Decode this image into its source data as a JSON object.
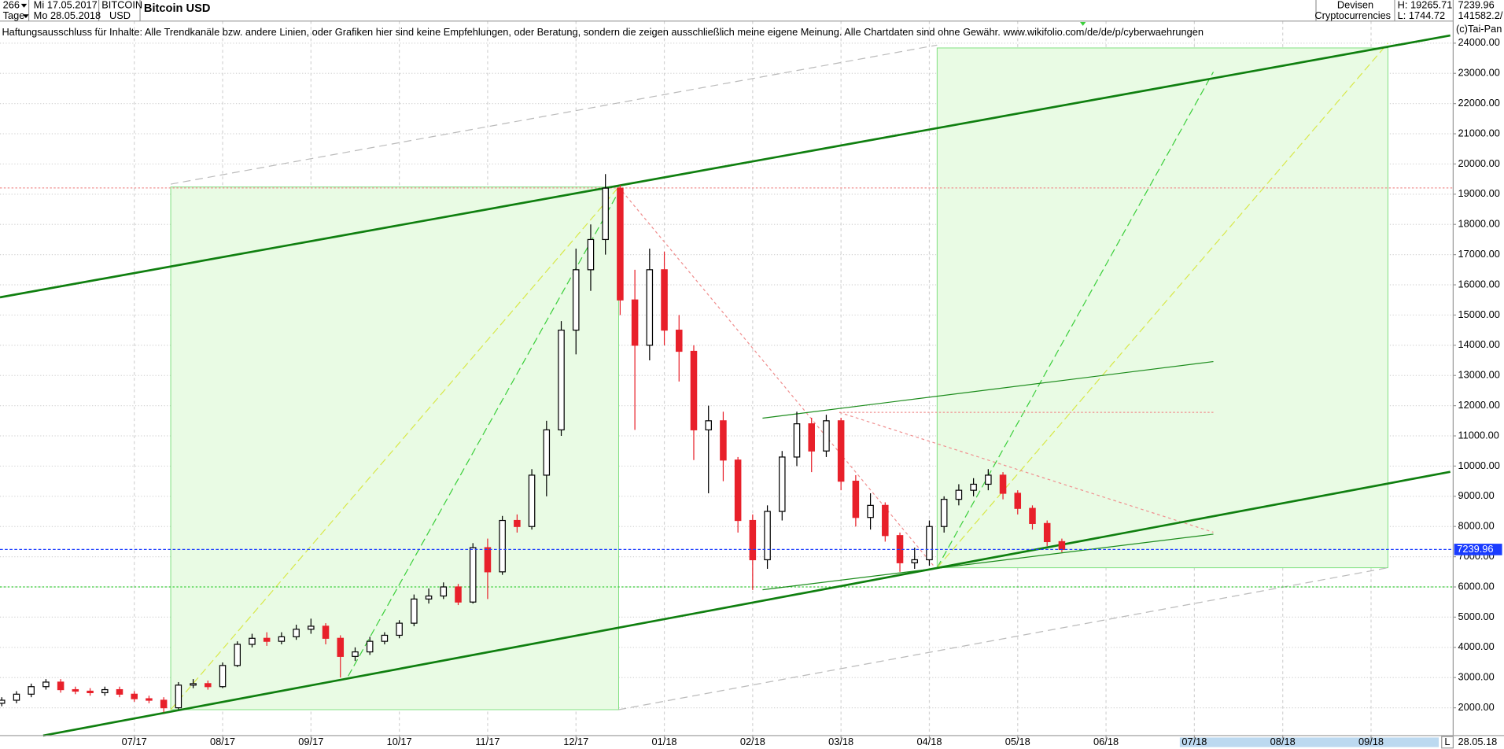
{
  "header": {
    "count": "266",
    "period": "Tage",
    "from": "Mi 17.05.2017",
    "to": "Mo 28.05.2018",
    "symbol": "BITCOIN",
    "currency": "USD",
    "title": "Bitcoin USD",
    "market": "Devisen",
    "group": "Cryptocurrencies",
    "high": "H: 19265.71",
    "low": "L: 1744.72",
    "last": "7239.96",
    "volume": "141582.2/",
    "credit": "(c)Tai-Pan"
  },
  "disclaimer": "Haftungsausschluss für Inhalte: Alle Trendkanäle bzw. andere Linien, oder Grafiken hier sind keine Empfehlungen, oder Beratung, sondern die zeigen ausschließlich meine eigene Meinung. Alle Chartdaten sind ohne Gewähr.  www.wikifolio.com/de/de/p/cyberwaehrungen",
  "footer": {
    "current_date": "28.05.18",
    "scroll": "L"
  },
  "chart_data": {
    "type": "candlestick",
    "title": "Bitcoin USD",
    "categories": [
      null,
      null,
      null,
      null,
      null,
      null,
      null,
      null,
      null,
      "07/17",
      null,
      null,
      null,
      null,
      null,
      "08/17",
      null,
      null,
      null,
      null,
      null,
      "09/17",
      null,
      null,
      null,
      null,
      null,
      "10/17",
      null,
      null,
      null,
      null,
      null,
      "11/17",
      null,
      null,
      null,
      null,
      null,
      "12/17",
      null,
      null,
      null,
      null,
      null,
      "01/18",
      null,
      null,
      null,
      null,
      null,
      "02/18",
      null,
      null,
      null,
      null,
      null,
      "03/18",
      null,
      null,
      null,
      null,
      null,
      "04/18",
      null,
      null,
      null,
      null,
      null,
      "05/18",
      null,
      null,
      null,
      null,
      null,
      "06/18",
      null,
      null,
      null,
      null,
      null,
      "07/18",
      null,
      null,
      null,
      null,
      null,
      "08/18",
      null,
      null,
      null,
      null,
      null,
      "09/18",
      null,
      null,
      null,
      null
    ],
    "open": [
      2150,
      2250,
      2450,
      2700,
      2850,
      2600,
      2550,
      2500,
      2600,
      2450,
      2300,
      2250,
      2000,
      2750,
      2800,
      2700,
      3400,
      4100,
      4300,
      4200,
      4350,
      4600,
      4700,
      4300,
      3700,
      3850,
      4200,
      4400,
      4800,
      5600,
      5700,
      6000,
      5500,
      7300,
      6500,
      8200,
      8000,
      9700,
      11200,
      14500,
      16500,
      17500,
      19200,
      15500,
      14000,
      16500,
      14500,
      13800,
      11200,
      11500,
      10200,
      8200,
      6900,
      8500,
      10300,
      11400,
      10500,
      11500,
      9500,
      8300,
      8700,
      7700,
      6800,
      6900,
      8000,
      8900,
      9200,
      9400,
      9700,
      9100,
      8600,
      8100,
      7500,
      null,
      null,
      null,
      null,
      null,
      null,
      null,
      null,
      null,
      null,
      null,
      null,
      null,
      null,
      null,
      null,
      null,
      null,
      null,
      null,
      null,
      null,
      null,
      null,
      null
    ],
    "high": [
      2350,
      2550,
      2800,
      2950,
      2950,
      2700,
      2650,
      2700,
      2700,
      2550,
      2400,
      2350,
      2850,
      2950,
      2900,
      3500,
      4200,
      4450,
      4500,
      4500,
      4750,
      4950,
      4800,
      4400,
      4000,
      4350,
      4500,
      4900,
      5750,
      5950,
      6150,
      6100,
      7450,
      7600,
      8350,
      8400,
      9900,
      11500,
      14800,
      17200,
      18000,
      19666,
      19300,
      16500,
      17200,
      17100,
      15000,
      14000,
      12000,
      11800,
      10300,
      8400,
      8700,
      10500,
      11800,
      11600,
      11700,
      11600,
      9700,
      9100,
      8800,
      7800,
      7300,
      8200,
      9000,
      9400,
      9600,
      9900,
      9800,
      9200,
      8700,
      8200,
      7600,
      null,
      null,
      null,
      null,
      null,
      null,
      null,
      null,
      null,
      null,
      null,
      null,
      null,
      null,
      null,
      null,
      null,
      null,
      null,
      null,
      null,
      null,
      null,
      null,
      null
    ],
    "low": [
      2050,
      2150,
      2350,
      2600,
      2500,
      2450,
      2400,
      2400,
      2350,
      2200,
      2150,
      1850,
      1950,
      2650,
      2600,
      2650,
      3350,
      4000,
      4050,
      4100,
      4250,
      4450,
      4100,
      3000,
      3550,
      3750,
      4100,
      4300,
      4700,
      5450,
      5600,
      5400,
      5450,
      5600,
      6400,
      7800,
      7900,
      9000,
      11000,
      13700,
      15800,
      17000,
      15000,
      11200,
      13500,
      14000,
      12800,
      10200,
      9100,
      9500,
      7800,
      5900,
      6600,
      8200,
      10000,
      9800,
      10300,
      9200,
      8000,
      7900,
      7500,
      6500,
      6600,
      6700,
      7800,
      8700,
      9000,
      9200,
      8900,
      8400,
      7900,
      7350,
      7150,
      null,
      null,
      null,
      null,
      null,
      null,
      null,
      null,
      null,
      null,
      null,
      null,
      null,
      null,
      null,
      null,
      null,
      null,
      null,
      null,
      null,
      null,
      null,
      null,
      null
    ],
    "close": [
      2250,
      2450,
      2700,
      2850,
      2600,
      2550,
      2500,
      2600,
      2450,
      2300,
      2250,
      2000,
      2750,
      2800,
      2700,
      3400,
      4100,
      4300,
      4200,
      4350,
      4600,
      4700,
      4300,
      3700,
      3850,
      4200,
      4400,
      4800,
      5600,
      5700,
      6000,
      5500,
      7300,
      6500,
      8200,
      8000,
      9700,
      11200,
      14500,
      16500,
      17500,
      19200,
      15500,
      14000,
      16500,
      14500,
      13800,
      11200,
      11500,
      10200,
      8200,
      6900,
      8500,
      10300,
      11400,
      10500,
      11500,
      9500,
      8300,
      8700,
      7700,
      6800,
      6900,
      8000,
      8900,
      9200,
      9400,
      9700,
      9100,
      8600,
      8100,
      7500,
      7239.96,
      null,
      null,
      null,
      null,
      null,
      null,
      null,
      null,
      null,
      null,
      null,
      null,
      null,
      null,
      null,
      null,
      null,
      null,
      null,
      null,
      null,
      null,
      null,
      null,
      null
    ],
    "up_color": "#000000",
    "down_color": "#e8202a",
    "last_value": 7239.96,
    "last_color": "#1a3cff",
    "ylim": [
      1080,
      24730
    ],
    "yticks": [
      {
        "value": 2000,
        "label": "2000.00"
      },
      {
        "value": 3000,
        "label": "3000.00"
      },
      {
        "value": 4000,
        "label": "4000.00"
      },
      {
        "value": 5000,
        "label": "5000.00"
      },
      {
        "value": 6000,
        "label": "6000.00"
      },
      {
        "value": 7000,
        "label": "7000.00"
      },
      {
        "value": 8000,
        "label": "8000.00"
      },
      {
        "value": 9000,
        "label": "9000.00"
      },
      {
        "value": 10000,
        "label": "10000.00"
      },
      {
        "value": 11000,
        "label": "11000.00"
      },
      {
        "value": 12000,
        "label": "12000.00"
      },
      {
        "value": 13000,
        "label": "13000.00"
      },
      {
        "value": 14000,
        "label": "14000.00"
      },
      {
        "value": 15000,
        "label": "15000.00"
      },
      {
        "value": 16000,
        "label": "16000.00"
      },
      {
        "value": 17000,
        "label": "17000.00"
      },
      {
        "value": 18000,
        "label": "18000.00"
      },
      {
        "value": 19000,
        "label": "19000.00"
      },
      {
        "value": 20000,
        "label": "20000.00"
      },
      {
        "value": 21000,
        "label": "21000.00"
      },
      {
        "value": 22000,
        "label": "22000.00"
      },
      {
        "value": 23000,
        "label": "23000.00"
      },
      {
        "value": 24000,
        "label": "24000.00"
      }
    ],
    "grid": true
  }
}
